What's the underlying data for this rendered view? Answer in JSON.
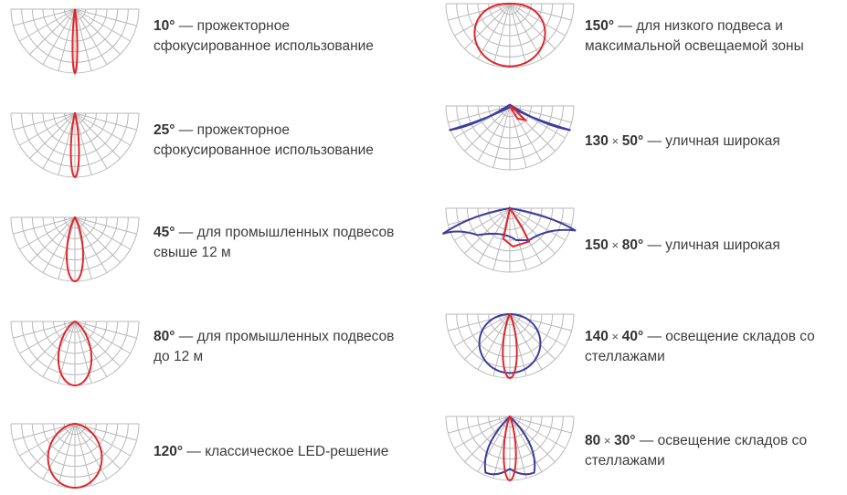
{
  "colors": {
    "grid": "#b9b9b9",
    "primary_curve": "#e0252b",
    "secondary_curve": "#3c3c9e",
    "text": "#3d3d3d"
  },
  "left_column": [
    {
      "angle": "10°",
      "dash": " — ",
      "line1": "прожекторное",
      "line2": "сфокусированное использование",
      "shape": "narrow-10"
    },
    {
      "angle": "25°",
      "dash": " — ",
      "line1": "прожекторное",
      "line2": "сфокусированное использование",
      "shape": "narrow-25"
    },
    {
      "angle": "45°",
      "dash": " — ",
      "line1": "для промышленных подвесов",
      "line2": "свыше 12 м",
      "shape": "beam-45"
    },
    {
      "angle": "80°",
      "dash": " — ",
      "line1": "для промышленных подвесов",
      "line2": "до 12 м",
      "shape": "beam-80"
    },
    {
      "angle": "120°",
      "dash": " — ",
      "line1": "классическое LED-решение",
      "line2": "",
      "shape": "beam-120"
    }
  ],
  "right_column": [
    {
      "angle": "150°",
      "angle2": "",
      "times": "",
      "dash": " — ",
      "line1": "для низкого подвеса и",
      "line2": "максимальной освещаемой зоны",
      "shape": "beam-150"
    },
    {
      "angle": "130",
      "times": " × ",
      "angle2": "50°",
      "dash": " — ",
      "line1": "уличная широкая",
      "line2": "",
      "shape": "street-130x50"
    },
    {
      "angle": "150",
      "times": " × ",
      "angle2": "80°",
      "dash": " — ",
      "line1": "уличная широкая",
      "line2": "",
      "shape": "street-150x80"
    },
    {
      "angle": "140",
      "times": " × ",
      "angle2": "40°",
      "dash": " — ",
      "line1": "освещение складов со",
      "line2": "стеллажами",
      "shape": "warehouse-140x40"
    },
    {
      "angle": "80",
      "times": " × ",
      "angle2": "30°",
      "dash": " — ",
      "line1": "освещение складов со",
      "line2": "стеллажами",
      "shape": "warehouse-80x30"
    }
  ]
}
